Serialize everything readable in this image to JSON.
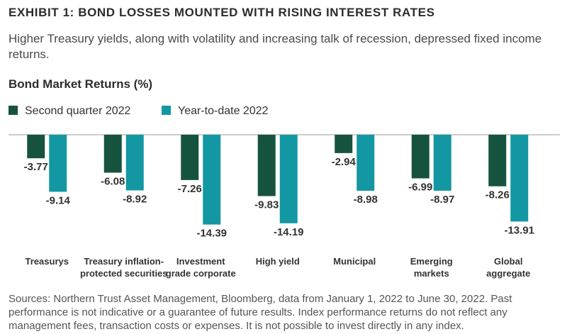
{
  "header": {
    "exhibit_title": "EXHIBIT 1: BOND LOSSES MOUNTED WITH RISING INTEREST RATES",
    "subtitle": "Higher Treasury yields, along with volatility and increasing talk of recession, depressed fixed income returns."
  },
  "chart_data": {
    "type": "bar",
    "title": "Bond Market Returns (%)",
    "categories": [
      [
        "Treasurys"
      ],
      [
        "Treasury inflation-",
        "protected securities"
      ],
      [
        "Investment",
        "grade corporate"
      ],
      [
        "High yield"
      ],
      [
        "Municipal"
      ],
      [
        "Emerging",
        "markets"
      ],
      [
        "Global",
        "aggregate"
      ]
    ],
    "series": [
      {
        "name": "Second quarter 2022",
        "color": "#16533f",
        "values": [
          -3.77,
          -6.08,
          -7.26,
          -9.83,
          -2.94,
          -6.99,
          -8.26
        ]
      },
      {
        "name": "Year-to-date 2022",
        "color": "#1397a3",
        "values": [
          -9.14,
          -8.92,
          -14.39,
          -14.19,
          -8.98,
          -8.97,
          -13.91
        ]
      }
    ],
    "ylim": [
      -16,
      0
    ],
    "legend_position": "top-left",
    "grid": false
  },
  "footer": {
    "sources": "Sources: Northern Trust Asset Management, Bloomberg, data from January 1, 2022 to June 30, 2022. Past performance is not indicative or a guarantee of future results. Index performance returns do not reflect any management fees, transaction costs or expenses. It is not possible to invest directly in any index."
  }
}
